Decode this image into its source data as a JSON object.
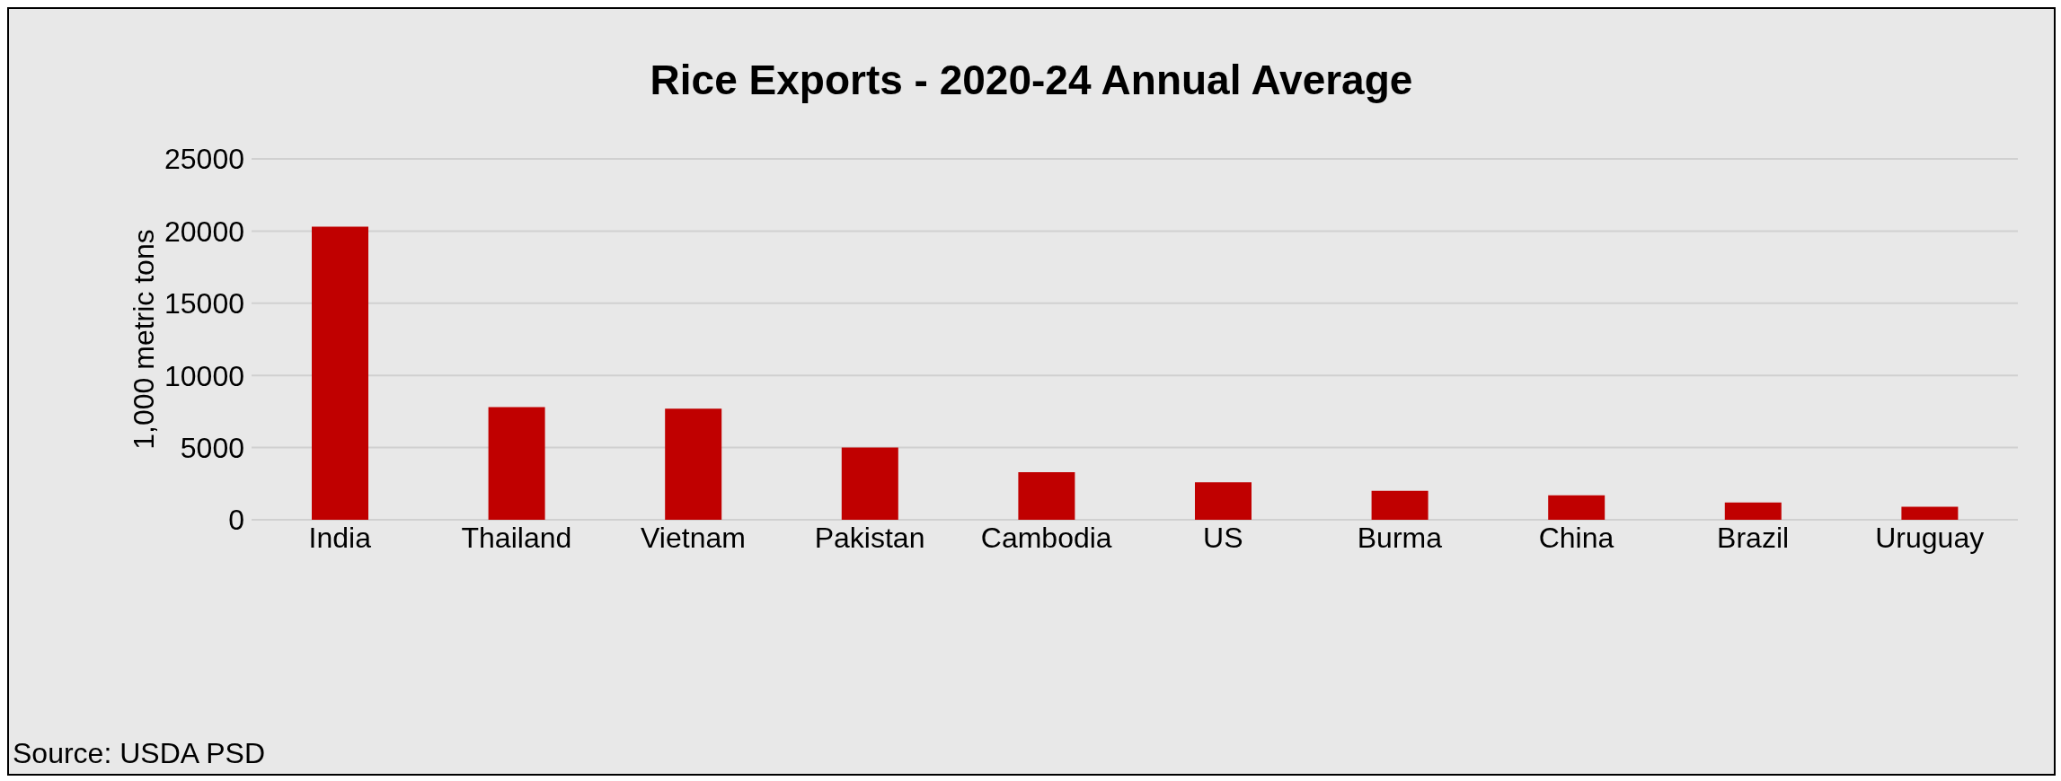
{
  "chart_data": {
    "type": "bar",
    "title": "Rice Exports - 2020-24 Annual Average",
    "ylabel": "1,000 metric tons",
    "categories": [
      "India",
      "Thailand",
      "Vietnam",
      "Pakistan",
      "Cambodia",
      "US",
      "Burma",
      "China",
      "Brazil",
      "Uruguay"
    ],
    "values": [
      20300,
      7800,
      7700,
      5000,
      3300,
      2600,
      2000,
      1700,
      1200,
      900
    ],
    "color": "#c00000",
    "ylim": [
      0,
      25000
    ],
    "yticks": [
      0,
      5000,
      10000,
      15000,
      20000,
      25000
    ],
    "grid": "y",
    "legend": false,
    "annotations": [
      "Source: USDA PSD"
    ]
  }
}
